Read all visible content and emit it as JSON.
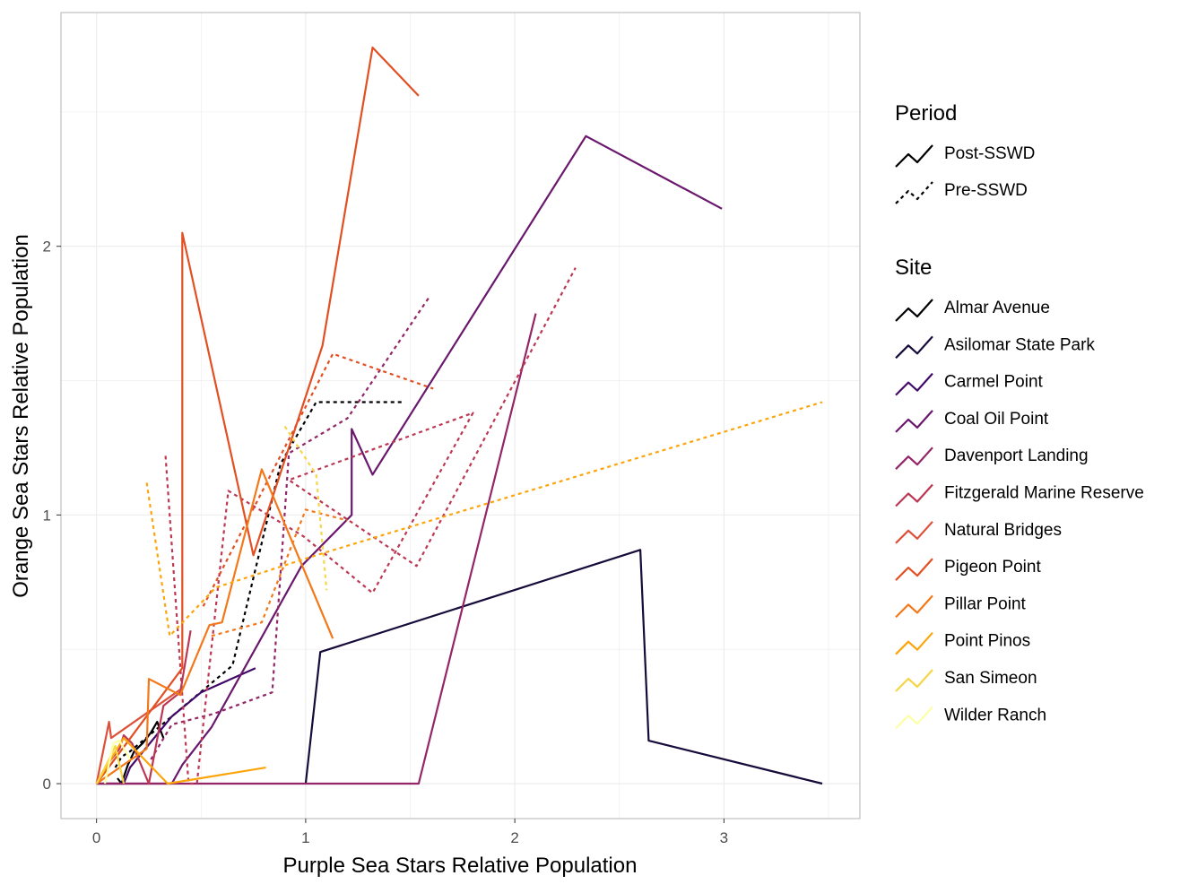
{
  "chart_data": {
    "type": "line",
    "title": "",
    "xlabel": "Purple Sea Stars Relative Population",
    "ylabel": "Orange Sea Stars Relative Population",
    "xlim": [
      -0.17,
      3.65
    ],
    "ylim": [
      -0.13,
      2.87
    ],
    "x_ticks": [
      0,
      1,
      2,
      3
    ],
    "x_tick_labels": [
      "0",
      "1",
      "2",
      "3"
    ],
    "y_ticks": [
      0,
      1,
      2
    ],
    "y_tick_labels": [
      "0",
      "1",
      "2"
    ],
    "grid": true,
    "legend_position": "right",
    "legend": {
      "period_title": "Period",
      "period_entries": [
        {
          "label": "Post-SSWD",
          "style": "solid"
        },
        {
          "label": "Pre-SSWD",
          "style": "dotted"
        }
      ],
      "site_title": "Site"
    },
    "series": [
      {
        "name": "Almar Avenue",
        "color": "#000004",
        "post": [
          [
            0.1,
            0.02
          ],
          [
            0.12,
            0.0
          ],
          [
            0.15,
            0.07
          ],
          [
            0.18,
            0.12
          ],
          [
            0.22,
            0.15
          ],
          [
            0.26,
            0.19
          ],
          [
            0.29,
            0.23
          ],
          [
            0.32,
            0.17
          ]
        ],
        "pre": [
          [
            0.09,
            0.06
          ],
          [
            0.12,
            0.1
          ],
          [
            0.16,
            0.12
          ],
          [
            0.65,
            0.44
          ],
          [
            0.88,
            1.19
          ],
          [
            1.05,
            1.42
          ],
          [
            1.47,
            1.42
          ]
        ]
      },
      {
        "name": "Asilomar State Park",
        "color": "#160B39",
        "post": [
          [
            1.0,
            0.0
          ],
          [
            1.07,
            0.49
          ],
          [
            2.6,
            0.87
          ],
          [
            2.64,
            0.16
          ],
          [
            3.47,
            0.0
          ]
        ],
        "pre": []
      },
      {
        "name": "Carmel Point",
        "color": "#420A68",
        "post": [
          [
            0.0,
            0.0
          ],
          [
            0.13,
            0.0
          ],
          [
            0.16,
            0.06
          ],
          [
            0.36,
            0.25
          ],
          [
            0.5,
            0.34
          ],
          [
            0.76,
            0.43
          ]
        ],
        "pre": []
      },
      {
        "name": "Coal Oil Point",
        "color": "#6A176E",
        "post": [
          [
            0.0,
            0.0
          ],
          [
            0.36,
            0.0
          ],
          [
            0.41,
            0.07
          ],
          [
            0.55,
            0.21
          ],
          [
            0.98,
            0.81
          ],
          [
            1.22,
            1.0
          ],
          [
            1.22,
            1.32
          ],
          [
            1.32,
            1.15
          ],
          [
            2.34,
            2.41
          ],
          [
            2.99,
            2.14
          ]
        ],
        "pre": []
      },
      {
        "name": "Davenport Landing",
        "color": "#932667",
        "post": [
          [
            0.0,
            0.0
          ],
          [
            1.54,
            0.0
          ],
          [
            2.1,
            1.75
          ]
        ],
        "pre": [
          [
            0.26,
            0.09
          ],
          [
            0.36,
            0.22
          ],
          [
            0.56,
            0.26
          ],
          [
            0.84,
            0.34
          ],
          [
            0.92,
            1.23
          ],
          [
            1.2,
            1.36
          ],
          [
            1.59,
            1.81
          ]
        ]
      },
      {
        "name": "Fitzgerald Marine Reserve",
        "color": "#BC3754",
        "post": [
          [
            0.04,
            0.06
          ],
          [
            0.07,
            0.09
          ],
          [
            0.11,
            0.13
          ],
          [
            0.13,
            0.18
          ],
          [
            0.17,
            0.15
          ],
          [
            0.25,
            0.0
          ],
          [
            0.32,
            0.29
          ],
          [
            0.4,
            0.34
          ],
          [
            0.45,
            0.57
          ]
        ],
        "pre": [
          [
            0.33,
            1.22
          ],
          [
            0.41,
            0.33
          ],
          [
            0.44,
            0.0
          ],
          [
            0.48,
            0.0
          ],
          [
            0.63,
            1.09
          ],
          [
            0.99,
            0.92
          ],
          [
            1.32,
            0.71
          ],
          [
            1.8,
            1.38
          ],
          [
            0.92,
            1.13
          ],
          [
            1.53,
            0.81
          ],
          [
            2.29,
            1.92
          ]
        ]
      },
      {
        "name": "Natural Bridges",
        "color": "#DD513A",
        "post": [
          [
            0.0,
            0.0
          ],
          [
            0.06,
            0.23
          ],
          [
            0.07,
            0.17
          ],
          [
            0.4,
            0.35
          ]
        ],
        "pre": []
      },
      {
        "name": "Pigeon Point",
        "color": "#E24F22",
        "post": [
          [
            0.0,
            0.0
          ],
          [
            0.41,
            0.43
          ],
          [
            0.41,
            2.05
          ],
          [
            0.75,
            0.85
          ],
          [
            1.08,
            1.63
          ],
          [
            1.32,
            2.74
          ],
          [
            1.54,
            2.56
          ]
        ],
        "pre": [
          [
            0.51,
            0.66
          ],
          [
            1.13,
            1.6
          ],
          [
            1.61,
            1.47
          ]
        ]
      },
      {
        "name": "Pillar Point",
        "color": "#F37819",
        "post": [
          [
            0.0,
            0.0
          ],
          [
            0.24,
            0.13
          ],
          [
            0.25,
            0.39
          ],
          [
            0.4,
            0.33
          ],
          [
            0.54,
            0.59
          ],
          [
            0.6,
            0.6
          ],
          [
            0.79,
            1.17
          ],
          [
            1.13,
            0.54
          ]
        ],
        "pre": [
          [
            0.55,
            0.55
          ],
          [
            0.79,
            0.6
          ],
          [
            1.0,
            1.02
          ],
          [
            1.2,
            0.98
          ]
        ]
      },
      {
        "name": "Point Pinos",
        "color": "#FCA50A",
        "post": [
          [
            0.0,
            0.0
          ],
          [
            0.13,
            0.17
          ],
          [
            0.34,
            0.0
          ],
          [
            0.81,
            0.06
          ]
        ],
        "pre": [
          [
            0.24,
            1.12
          ],
          [
            0.35,
            0.55
          ],
          [
            0.57,
            0.73
          ],
          [
            1.05,
            0.85
          ],
          [
            3.47,
            1.42
          ]
        ]
      },
      {
        "name": "San Simeon",
        "color": "#F6D645",
        "post": [
          [
            0.0,
            0.0
          ],
          [
            0.06,
            0.09
          ],
          [
            0.09,
            0.14
          ],
          [
            0.13,
            0.0
          ]
        ],
        "pre": [
          [
            0.9,
            1.33
          ],
          [
            1.05,
            1.15
          ],
          [
            1.1,
            0.72
          ]
        ]
      },
      {
        "name": "Wilder Ranch",
        "color": "#FCFFA4",
        "post": [
          [
            0.04,
            0.0
          ],
          [
            0.08,
            0.15
          ],
          [
            0.11,
            0.16
          ],
          [
            0.16,
            0.09
          ]
        ],
        "pre": []
      }
    ]
  }
}
